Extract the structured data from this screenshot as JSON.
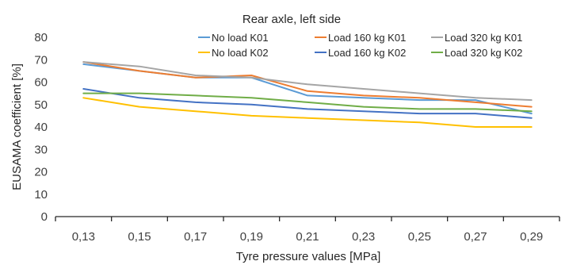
{
  "chart_data": {
    "type": "line",
    "title": "Rear axle, left side",
    "xlabel": "Tyre pressure values [MPa]",
    "ylabel": "EUSAMA coefficient [%]",
    "categories": [
      "0,13",
      "0,15",
      "0,17",
      "0,19",
      "0,21",
      "0,23",
      "0,25",
      "0,27",
      "0,29"
    ],
    "ylim": [
      0,
      80
    ],
    "yticks": [
      0,
      10,
      20,
      30,
      40,
      50,
      60,
      70,
      80
    ],
    "grid": false,
    "legend_position": "top-right",
    "series": [
      {
        "name": "No load K01",
        "color": "#5b9bd5",
        "values": [
          68,
          65,
          62,
          62,
          54,
          53,
          52,
          52,
          46
        ]
      },
      {
        "name": "Load 160 kg K01",
        "color": "#ed7d31",
        "values": [
          69,
          65,
          62,
          63,
          56,
          54,
          53,
          51,
          49
        ]
      },
      {
        "name": "Load 320 kg K01",
        "color": "#a5a5a5",
        "values": [
          69,
          67,
          63,
          62,
          59,
          57,
          55,
          53,
          52
        ]
      },
      {
        "name": "No load K02",
        "color": "#ffc000",
        "values": [
          53,
          49,
          47,
          45,
          44,
          43,
          42,
          40,
          40
        ]
      },
      {
        "name": "Load 160 kg K02",
        "color": "#4472c4",
        "values": [
          57,
          53,
          51,
          50,
          48,
          47,
          46,
          46,
          44
        ]
      },
      {
        "name": "Load 320 kg K02",
        "color": "#70ad47",
        "values": [
          55,
          55,
          54,
          53,
          51,
          49,
          48,
          48,
          47
        ]
      }
    ]
  }
}
